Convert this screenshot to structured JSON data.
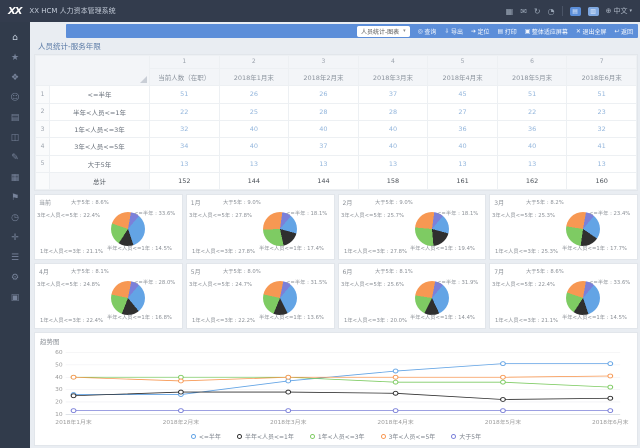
{
  "app": {
    "logo_text": "XX",
    "title": "XX HCM 人力资本管理系统",
    "header_icons": [
      {
        "name": "calendar-icon",
        "glyph": "▦"
      },
      {
        "name": "mail-icon",
        "glyph": "✉"
      },
      {
        "name": "refresh-icon",
        "glyph": "↻"
      },
      {
        "name": "help-icon",
        "glyph": "◔"
      }
    ],
    "avatar_glyphs": [
      "▤",
      "▥"
    ],
    "language": {
      "icon": "⊕",
      "label": "中文",
      "caret": "▾"
    }
  },
  "sidebar": {
    "icons": [
      {
        "name": "home-icon",
        "glyph": "⌂"
      },
      {
        "name": "star-icon",
        "glyph": "★"
      },
      {
        "name": "chat-icon",
        "glyph": "❖"
      },
      {
        "name": "user-icon",
        "glyph": "☺"
      },
      {
        "name": "document-icon",
        "glyph": "▤"
      },
      {
        "name": "folder-icon",
        "glyph": "◫"
      },
      {
        "name": "edit-icon",
        "glyph": "✎"
      },
      {
        "name": "chart-icon",
        "glyph": "▦"
      },
      {
        "name": "flag-icon",
        "glyph": "⚑"
      },
      {
        "name": "clock-icon",
        "glyph": "◷"
      },
      {
        "name": "link-icon",
        "glyph": "✛"
      },
      {
        "name": "menu-icon",
        "glyph": "☰"
      },
      {
        "name": "gear-icon",
        "glyph": "⚙"
      },
      {
        "name": "grid-icon",
        "glyph": "▣"
      }
    ]
  },
  "toolbar": {
    "view_select": "人员统计-图表",
    "buttons": [
      {
        "icon": "◎",
        "label": "查询"
      },
      {
        "icon": "⇩",
        "label": "导出"
      },
      {
        "icon": "➔",
        "label": "定位"
      },
      {
        "icon": "▤",
        "label": "打印"
      },
      {
        "icon": "▣",
        "label": "整体适应屏幕"
      },
      {
        "icon": "✕",
        "label": "退出全屏"
      },
      {
        "icon": "↩",
        "label": "返回"
      }
    ]
  },
  "page": {
    "title": "人员统计-服务年限"
  },
  "table": {
    "index_headers": [
      "1",
      "2",
      "3",
      "4",
      "5",
      "6",
      "7"
    ],
    "columns": [
      "当前人数（在职）",
      "2018年1月末",
      "2018年2月末",
      "2018年3月末",
      "2018年4月末",
      "2018年5月末",
      "2018年6月末"
    ],
    "rows": [
      {
        "no": "1",
        "label": "<=半年",
        "values": [
          "51",
          "26",
          "26",
          "37",
          "45",
          "51",
          "51"
        ]
      },
      {
        "no": "2",
        "label": "半年<人员<=1年",
        "values": [
          "22",
          "25",
          "28",
          "28",
          "27",
          "22",
          "23"
        ]
      },
      {
        "no": "3",
        "label": "1年<人员<=3年",
        "values": [
          "32",
          "40",
          "40",
          "40",
          "36",
          "36",
          "32"
        ]
      },
      {
        "no": "4",
        "label": "3年<人员<=5年",
        "values": [
          "34",
          "40",
          "37",
          "40",
          "40",
          "40",
          "41"
        ]
      },
      {
        "no": "5",
        "label": "大于5年",
        "values": [
          "13",
          "13",
          "13",
          "13",
          "13",
          "13",
          "13"
        ]
      }
    ],
    "total_row": {
      "no": "",
      "label": "总计",
      "values": [
        "152",
        "144",
        "144",
        "158",
        "161",
        "162",
        "160"
      ]
    }
  },
  "slice_names": [
    "<=半年",
    "半年<人员<=1年",
    "1年<人员<=3年",
    "3年<人员<=5年",
    "大于5年"
  ],
  "slice_colors": [
    "#63a4e5",
    "#2f2f2f",
    "#7ecb63",
    "#f79853",
    "#7b80d9"
  ],
  "chart_data": [
    {
      "type": "pie",
      "title": "当前",
      "labels": [
        "<=半年",
        "半年<人员<=1年",
        "1年<人员<=3年",
        "3年<人员<=5年",
        "大于5年"
      ],
      "values_pct": [
        33.6,
        14.5,
        21.1,
        22.4,
        8.6
      ]
    },
    {
      "type": "pie",
      "title": "1月",
      "labels": [
        "<=半年",
        "半年<人员<=1年",
        "1年<人员<=3年",
        "3年<人员<=5年",
        "大于5年"
      ],
      "values_pct": [
        18.1,
        17.4,
        27.8,
        27.8,
        9.0
      ]
    },
    {
      "type": "pie",
      "title": "2月",
      "labels": [
        "<=半年",
        "半年<人员<=1年",
        "1年<人员<=3年",
        "3年<人员<=5年",
        "大于5年"
      ],
      "values_pct": [
        18.1,
        19.4,
        27.8,
        25.7,
        9.0
      ]
    },
    {
      "type": "pie",
      "title": "3月",
      "labels": [
        "<=半年",
        "半年<人员<=1年",
        "1年<人员<=3年",
        "3年<人员<=5年",
        "大于5年"
      ],
      "values_pct": [
        23.4,
        17.7,
        25.3,
        25.3,
        8.2
      ]
    },
    {
      "type": "pie",
      "title": "4月",
      "labels": [
        "<=半年",
        "半年<人员<=1年",
        "1年<人员<=3年",
        "3年<人员<=5年",
        "大于5年"
      ],
      "values_pct": [
        28.0,
        16.8,
        22.4,
        24.8,
        8.1
      ]
    },
    {
      "type": "pie",
      "title": "5月",
      "labels": [
        "<=半年",
        "半年<人员<=1年",
        "1年<人员<=3年",
        "3年<人员<=5年",
        "大于5年"
      ],
      "values_pct": [
        31.5,
        13.6,
        22.2,
        24.7,
        8.0
      ]
    },
    {
      "type": "pie",
      "title": "6月",
      "labels": [
        "<=半年",
        "半年<人员<=1年",
        "1年<人员<=3年",
        "3年<人员<=5年",
        "大于5年"
      ],
      "values_pct": [
        31.9,
        14.4,
        20.0,
        25.6,
        8.1
      ]
    },
    {
      "type": "pie",
      "title": "7月",
      "labels": [
        "<=半年",
        "半年<人员<=1年",
        "1年<人员<=3年",
        "3年<人员<=5年",
        "大于5年"
      ],
      "values_pct": [
        33.6,
        14.5,
        21.1,
        22.4,
        8.6
      ]
    },
    {
      "type": "line",
      "title": "趋势图",
      "x": [
        "2018年1月末",
        "2018年2月末",
        "2018年3月末",
        "2018年4月末",
        "2018年5月末",
        "2018年6月末"
      ],
      "ylim": [
        10,
        60
      ],
      "yticks": [
        10,
        20,
        30,
        40,
        50,
        60
      ],
      "grid": true,
      "legend_position": "bottom",
      "series": [
        {
          "name": "<=半年",
          "color": "#63a4e5",
          "values": [
            26,
            26,
            37,
            45,
            51,
            51
          ]
        },
        {
          "name": "半年<人员<=1年",
          "color": "#2f2f2f",
          "values": [
            25,
            28,
            28,
            27,
            22,
            23
          ]
        },
        {
          "name": "1年<人员<=3年",
          "color": "#7ecb63",
          "values": [
            40,
            40,
            40,
            36,
            36,
            32
          ]
        },
        {
          "name": "3年<人员<=5年",
          "color": "#f79853",
          "values": [
            40,
            37,
            40,
            40,
            40,
            41
          ]
        },
        {
          "name": "大于5年",
          "color": "#7b80d9",
          "values": [
            13,
            13,
            13,
            13,
            13,
            13
          ]
        }
      ]
    }
  ],
  "colors": {
    "header_bg": "#333c4d",
    "sidebar_bg": "#313b4b",
    "toolbar_blue": "#5c8ed9",
    "value_text": "#92b5dc",
    "accent_blue": "#63a4e5"
  }
}
